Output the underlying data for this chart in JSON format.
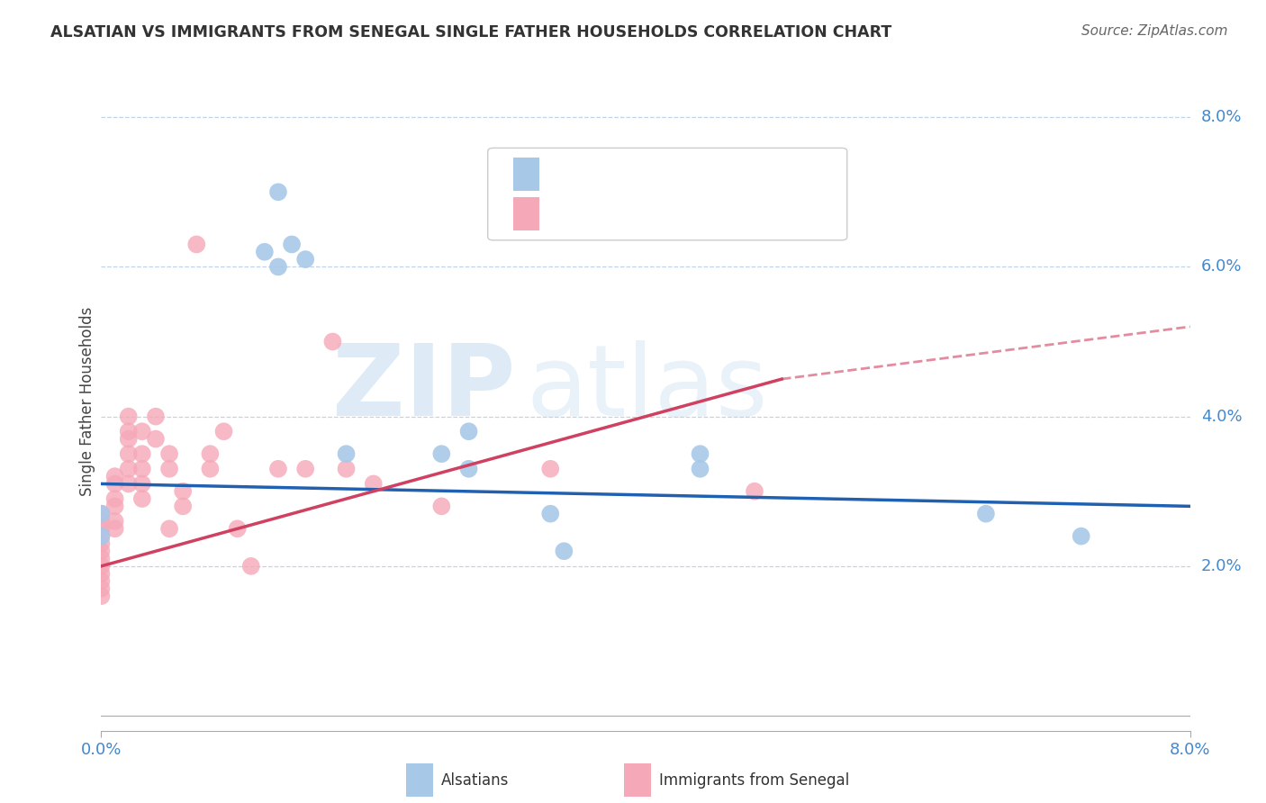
{
  "title": "ALSATIAN VS IMMIGRANTS FROM SENEGAL SINGLE FATHER HOUSEHOLDS CORRELATION CHART",
  "source": "Source: ZipAtlas.com",
  "ylabel": "Single Father Households",
  "xlim": [
    0.0,
    0.08
  ],
  "ylim": [
    -0.002,
    0.086
  ],
  "plot_ylim": [
    0.0,
    0.08
  ],
  "alsatian_color": "#a8c8e8",
  "senegal_color": "#f5a8b8",
  "alsatian_line_color": "#2060b0",
  "senegal_line_color": "#d04060",
  "alsatian_line": {
    "x0": 0.0,
    "y0": 0.031,
    "x1": 0.08,
    "y1": 0.028
  },
  "senegal_line_solid": {
    "x0": 0.0,
    "y0": 0.02,
    "x1": 0.05,
    "y1": 0.045
  },
  "senegal_line_dashed": {
    "x0": 0.05,
    "y0": 0.045,
    "x1": 0.08,
    "y1": 0.052
  },
  "alsatian_points": [
    [
      0.0,
      0.027
    ],
    [
      0.0,
      0.024
    ],
    [
      0.012,
      0.062
    ],
    [
      0.013,
      0.06
    ],
    [
      0.014,
      0.063
    ],
    [
      0.015,
      0.061
    ],
    [
      0.018,
      0.035
    ],
    [
      0.025,
      0.035
    ],
    [
      0.027,
      0.038
    ],
    [
      0.027,
      0.033
    ],
    [
      0.013,
      0.07
    ],
    [
      0.033,
      0.027
    ],
    [
      0.034,
      0.022
    ],
    [
      0.044,
      0.033
    ],
    [
      0.065,
      0.027
    ],
    [
      0.072,
      0.024
    ],
    [
      0.044,
      0.035
    ]
  ],
  "senegal_points": [
    [
      0.0,
      0.027
    ],
    [
      0.0,
      0.026
    ],
    [
      0.0,
      0.025
    ],
    [
      0.0,
      0.024
    ],
    [
      0.0,
      0.023
    ],
    [
      0.0,
      0.022
    ],
    [
      0.0,
      0.021
    ],
    [
      0.0,
      0.02
    ],
    [
      0.0,
      0.019
    ],
    [
      0.0,
      0.018
    ],
    [
      0.0,
      0.017
    ],
    [
      0.0,
      0.016
    ],
    [
      0.001,
      0.032
    ],
    [
      0.001,
      0.031
    ],
    [
      0.001,
      0.029
    ],
    [
      0.001,
      0.028
    ],
    [
      0.001,
      0.026
    ],
    [
      0.001,
      0.025
    ],
    [
      0.002,
      0.04
    ],
    [
      0.002,
      0.038
    ],
    [
      0.002,
      0.037
    ],
    [
      0.002,
      0.035
    ],
    [
      0.002,
      0.033
    ],
    [
      0.002,
      0.031
    ],
    [
      0.003,
      0.038
    ],
    [
      0.003,
      0.035
    ],
    [
      0.003,
      0.033
    ],
    [
      0.003,
      0.031
    ],
    [
      0.003,
      0.029
    ],
    [
      0.004,
      0.04
    ],
    [
      0.004,
      0.037
    ],
    [
      0.005,
      0.035
    ],
    [
      0.005,
      0.033
    ],
    [
      0.005,
      0.025
    ],
    [
      0.006,
      0.03
    ],
    [
      0.006,
      0.028
    ],
    [
      0.007,
      0.063
    ],
    [
      0.008,
      0.035
    ],
    [
      0.008,
      0.033
    ],
    [
      0.009,
      0.038
    ],
    [
      0.01,
      0.025
    ],
    [
      0.011,
      0.02
    ],
    [
      0.013,
      0.033
    ],
    [
      0.015,
      0.033
    ],
    [
      0.017,
      0.05
    ],
    [
      0.018,
      0.033
    ],
    [
      0.02,
      0.031
    ],
    [
      0.025,
      0.028
    ],
    [
      0.033,
      0.033
    ],
    [
      0.048,
      0.03
    ]
  ],
  "background_color": "#ffffff",
  "grid_color": "#c0d4e8",
  "ytick_values": [
    0.02,
    0.04,
    0.06,
    0.08
  ],
  "ytick_labels": [
    "2.0%",
    "4.0%",
    "6.0%",
    "8.0%"
  ],
  "xtick_values": [
    0.0,
    0.08
  ],
  "xtick_labels": [
    "0.0%",
    "8.0%"
  ]
}
